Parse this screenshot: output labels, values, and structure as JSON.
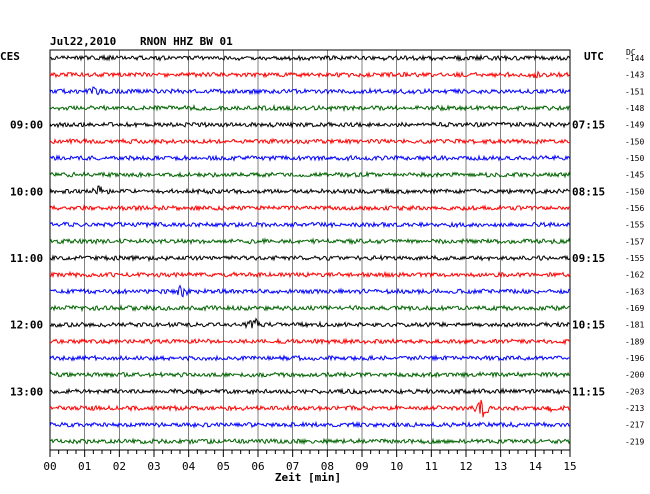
{
  "header": {
    "date": "Jul22,2010",
    "station": "RNON HHZ BW 01",
    "left_tz": "CES",
    "right_tz": "UTC",
    "dc_label": "DC"
  },
  "chart_data": {
    "type": "line",
    "title": "Jul22,2010  RNON HHZ BW 01",
    "xlabel": "Zeit [min]",
    "xlim": [
      0,
      15
    ],
    "x_ticks": [
      "00",
      "01",
      "02",
      "03",
      "04",
      "05",
      "06",
      "07",
      "08",
      "09",
      "10",
      "11",
      "12",
      "13",
      "14",
      "15"
    ],
    "grid": true,
    "trace_colors": [
      "#000000",
      "#ff0000",
      "#0000ff",
      "#006400"
    ],
    "left_time_labels": [
      {
        "trace": 4,
        "label": "09:00"
      },
      {
        "trace": 8,
        "label": "10:00"
      },
      {
        "trace": 12,
        "label": "11:00"
      },
      {
        "trace": 16,
        "label": "12:00"
      },
      {
        "trace": 20,
        "label": "13:00"
      }
    ],
    "right_time_labels": [
      {
        "trace": 4,
        "label": "07:15"
      },
      {
        "trace": 8,
        "label": "08:15"
      },
      {
        "trace": 12,
        "label": "09:15"
      },
      {
        "trace": 16,
        "label": "10:15"
      },
      {
        "trace": 20,
        "label": "11:15"
      }
    ],
    "dc_offsets": [
      "-144",
      "-143",
      "-151",
      "-148",
      "-149",
      "-150",
      "-150",
      "-145",
      "-150",
      "-156",
      "-155",
      "-157",
      "-155",
      "-162",
      "-163",
      "-169",
      "-181",
      "-189",
      "-196",
      "-200",
      "-203",
      "-213",
      "-217",
      "-219"
    ],
    "events": [
      {
        "trace": 2,
        "minute": 1.3,
        "amplitude": 5
      },
      {
        "trace": 8,
        "minute": 1.4,
        "amplitude": 5
      },
      {
        "trace": 14,
        "minute": 3.8,
        "amplitude": 6
      },
      {
        "trace": 16,
        "minute": 5.9,
        "amplitude": 7
      },
      {
        "trace": 21,
        "minute": 12.5,
        "amplitude": 12
      },
      {
        "trace": 21,
        "minute": 14.5,
        "amplitude": 3
      },
      {
        "trace": 1,
        "minute": 14.0,
        "amplitude": 3
      },
      {
        "trace": 16,
        "minute": 2.5,
        "amplitude": 2
      }
    ]
  }
}
